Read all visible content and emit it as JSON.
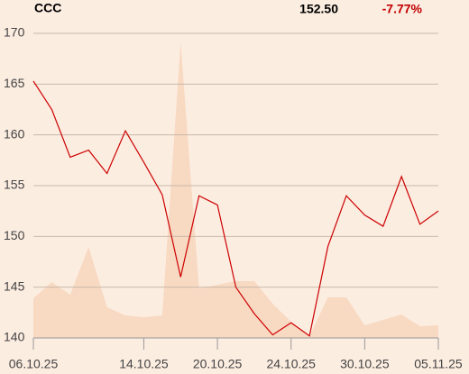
{
  "chart_data": {
    "type": "line",
    "title": "CCC",
    "last_price": "152.50",
    "change": "-7.77%",
    "change_color": "#c00000",
    "categories": [
      "06.10.25",
      null,
      null,
      null,
      null,
      null,
      "14.10.25",
      null,
      null,
      null,
      "20.10.25",
      null,
      null,
      null,
      "24.10.25",
      null,
      null,
      null,
      "30.10.25",
      null,
      null,
      null,
      "05.11.25"
    ],
    "series": [
      {
        "color": "#cc0000",
        "values": [
          165.3,
          162.5,
          157.8,
          158.5,
          156.2,
          160.4,
          157.3,
          154.1,
          146.0,
          154.0,
          153.1,
          145.0,
          142.4,
          140.3,
          141.5,
          140.2,
          149.0,
          154.0,
          152.1,
          151.0,
          155.9,
          151.2,
          152.5
        ]
      },
      {
        "color": "#f8d9c2",
        "axis": "y2",
        "area": true,
        "values": [
          44,
          62,
          48,
          101,
          34,
          25,
          23,
          25,
          328,
          55,
          59,
          63,
          63,
          38,
          18,
          2,
          45,
          45,
          14,
          20,
          26,
          13,
          14
        ]
      }
    ],
    "ylim": [
      140,
      170
    ],
    "yticks": [
      140,
      145,
      150,
      155,
      160,
      165,
      170
    ],
    "y2lim": [
      0,
      338
    ],
    "grid": true
  }
}
